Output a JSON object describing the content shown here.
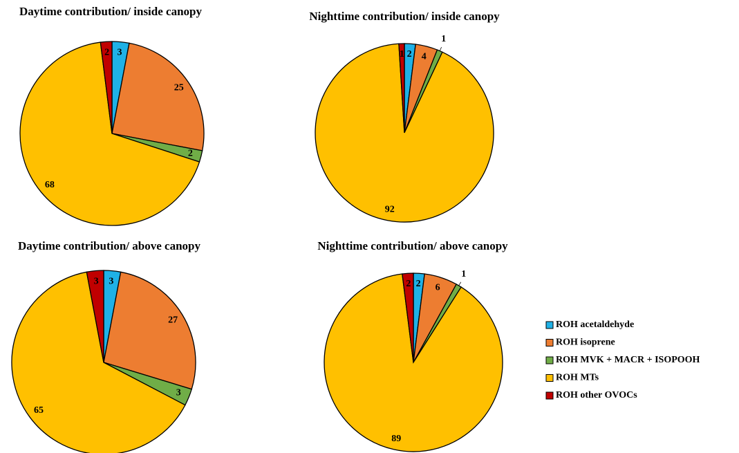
{
  "chart_data": [
    {
      "type": "pie",
      "title": "Daytime contribution/ inside canopy",
      "values": [
        3,
        25,
        2,
        68,
        2
      ]
    },
    {
      "type": "pie",
      "title": "Nighttime contribution/ inside canopy",
      "values": [
        2,
        4,
        1,
        92,
        1
      ]
    },
    {
      "type": "pie",
      "title": "Daytime contribution/ above canopy",
      "values": [
        3,
        27,
        3,
        65,
        3
      ]
    },
    {
      "type": "pie",
      "title": "Nighttime contribution/ above canopy",
      "values": [
        2,
        6,
        1,
        89,
        2
      ]
    }
  ],
  "legend": {
    "labels": [
      "ROH acetaldehyde",
      "ROH isoprene",
      "ROH MVK + MACR + ISOPOOH",
      "ROH MTs",
      "ROH other OVOCs"
    ],
    "colors": [
      "#1fb1e6",
      "#ed7d31",
      "#70ad47",
      "#ffc000",
      "#c00000"
    ]
  }
}
